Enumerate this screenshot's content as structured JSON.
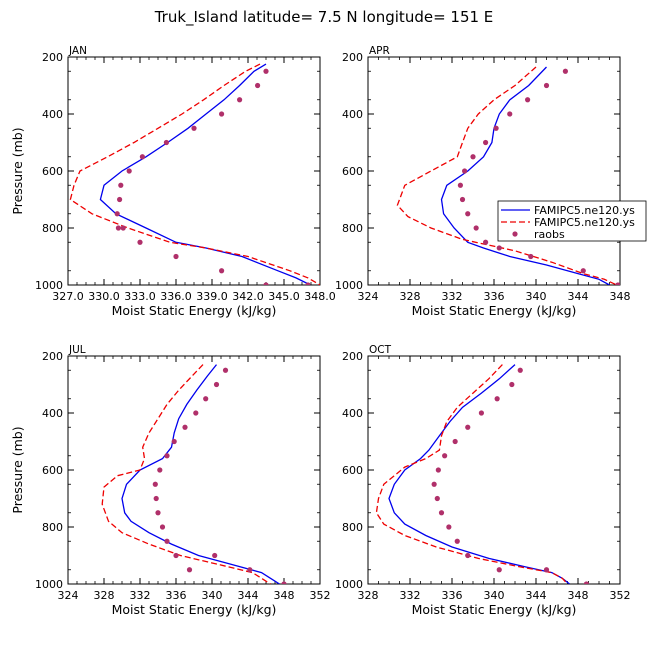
{
  "chart_data": {
    "title": "Truk_Island   latitude= 7.5 N longitude= 151 E",
    "type": "line",
    "colors": {
      "model1": "#0000ee",
      "model2": "#ee0000",
      "obs": "#b0306a"
    },
    "legend": [
      "FAMIPC5.ne120.ys",
      "FAMIPC5.ne120.ys",
      "raobs"
    ],
    "panels": [
      {
        "name": "JAN",
        "xlabel": "Moist Static Energy (kJ/kg)",
        "ylabel": "Pressure (mb)",
        "xlim": [
          327.0,
          348.0
        ],
        "xticks": [
          "327.0",
          "330.0",
          "333.0",
          "336.0",
          "339.0",
          "342.0",
          "345.0",
          "348.0"
        ],
        "ylim": [
          200,
          1000
        ],
        "yticks": [
          "200",
          "400",
          "600",
          "800",
          "1000"
        ],
        "series": [
          {
            "name": "FAMIPC5.ne120.ys",
            "style": "solid",
            "x": [
              343.5,
              342.5,
              341.3,
              340.0,
              338.5,
              337.0,
              335.3,
              333.5,
              331.5,
              330.0,
              329.7,
              331.0,
              333.5,
              336.0,
              338.5,
              341.5,
              344.5,
              346.0,
              347.2
            ],
            "y": [
              225,
              250,
              300,
              350,
              400,
              450,
              500,
              550,
              600,
              650,
              700,
              750,
              800,
              850,
              870,
              900,
              950,
              975,
              1000
            ]
          },
          {
            "name": "FAMIPC5.ne120.ys",
            "style": "dashed",
            "x": [
              343.0,
              341.8,
              340.0,
              338.3,
              336.5,
              334.5,
              332.5,
              330.3,
              328.0,
              327.5,
              327.2,
              329.0,
              332.0,
              335.5,
              338.5,
              342.0,
              345.5,
              347.0,
              348.0
            ],
            "y": [
              225,
              250,
              300,
              350,
              400,
              450,
              500,
              550,
              600,
              650,
              700,
              750,
              800,
              850,
              870,
              900,
              950,
              975,
              1000
            ]
          },
          {
            "name": "raobs",
            "style": "points",
            "x": [
              343.5,
              342.8,
              341.3,
              339.8,
              337.5,
              335.2,
              333.2,
              332.1,
              331.4,
              331.3,
              331.1,
              331.2,
              331.6,
              333.0,
              336.0,
              339.8,
              343.5,
              347.0
            ],
            "y": [
              250,
              300,
              350,
              400,
              450,
              500,
              550,
              600,
              650,
              700,
              750,
              800,
              800,
              850,
              900,
              950,
              1000,
              1000
            ]
          }
        ]
      },
      {
        "name": "APR",
        "xlabel": "Moist Static Energy (kJ/kg)",
        "ylabel": "",
        "xlim": [
          324,
          348
        ],
        "xticks": [
          "324",
          "328",
          "332",
          "336",
          "340",
          "344",
          "348"
        ],
        "ylim": [
          200,
          1000
        ],
        "yticks": [
          "200",
          "400",
          "600",
          "800",
          "1000"
        ],
        "series": [
          {
            "name": "FAMIPC5.ne120.ys",
            "style": "solid",
            "x": [
              341.0,
              339.3,
              337.5,
              336.5,
              336.0,
              335.8,
              335.0,
              333.5,
              331.5,
              331.0,
              331.2,
              332.2,
              333.5,
              335.0,
              337.5,
              341.0,
              344.0,
              346.0,
              347.0
            ],
            "y": [
              235,
              300,
              350,
              400,
              450,
              500,
              550,
              600,
              650,
              700,
              750,
              800,
              850,
              870,
              900,
              930,
              960,
              980,
              1000
            ]
          },
          {
            "name": "FAMIPC5.ne120.ys",
            "style": "dashed",
            "x": [
              340.0,
              338.0,
              336.0,
              334.5,
              333.5,
              333.0,
              332.5,
              330.0,
              327.5,
              326.8,
              327.8,
              330.0,
              333.0,
              335.5,
              338.0,
              341.5,
              344.5,
              346.5,
              347.7
            ],
            "y": [
              235,
              300,
              350,
              400,
              450,
              500,
              550,
              600,
              650,
              720,
              760,
              800,
              840,
              860,
              880,
              920,
              960,
              980,
              1000
            ]
          },
          {
            "name": "raobs",
            "style": "points",
            "x": [
              342.8,
              341.0,
              339.2,
              337.5,
              336.2,
              335.2,
              334.0,
              333.2,
              332.8,
              333.0,
              333.5,
              334.3,
              335.2,
              336.5,
              339.5,
              344.5,
              347.8
            ],
            "y": [
              250,
              300,
              350,
              400,
              450,
              500,
              550,
              600,
              650,
              700,
              750,
              800,
              850,
              870,
              900,
              950,
              1000
            ]
          }
        ]
      },
      {
        "name": "JUL",
        "xlabel": "Moist Static Energy (kJ/kg)",
        "ylabel": "Pressure (mb)",
        "xlim": [
          324,
          352
        ],
        "xticks": [
          "324",
          "328",
          "332",
          "336",
          "340",
          "344",
          "348",
          "352"
        ],
        "ylim": [
          200,
          1000
        ],
        "yticks": [
          "200",
          "400",
          "600",
          "800",
          "1000"
        ],
        "series": [
          {
            "name": "FAMIPC5.ne120.ys",
            "style": "solid",
            "x": [
              340.5,
              339.5,
              338.3,
              337.2,
              336.3,
              335.8,
              335.5,
              334.5,
              332.0,
              330.5,
              330.0,
              330.3,
              331.0,
              333.0,
              335.5,
              338.5,
              342.0,
              345.5,
              346.5,
              347.5
            ],
            "y": [
              230,
              270,
              320,
              370,
              420,
              470,
              520,
              560,
              600,
              650,
              700,
              750,
              780,
              820,
              860,
              900,
              930,
              960,
              980,
              1000
            ]
          },
          {
            "name": "FAMIPC5.ne120.ys",
            "style": "dashed",
            "x": [
              339.0,
              337.8,
              336.3,
              335.0,
              334.0,
              333.0,
              332.3,
              332.5,
              332.0,
              329.5,
              328.0,
              327.8,
              328.5,
              330.0,
              333.0,
              336.5,
              340.5,
              344.5,
              345.5,
              346.5
            ],
            "y": [
              230,
              270,
              320,
              370,
              420,
              470,
              520,
              560,
              600,
              620,
              660,
              720,
              780,
              820,
              860,
              900,
              930,
              960,
              980,
              1000
            ]
          },
          {
            "name": "raobs",
            "style": "points",
            "x": [
              341.5,
              340.5,
              339.3,
              338.2,
              337.0,
              335.8,
              335.0,
              334.2,
              333.7,
              333.8,
              334.0,
              334.5,
              335.0,
              336.0,
              337.5,
              340.3,
              344.2,
              348.0
            ],
            "y": [
              250,
              300,
              350,
              400,
              450,
              500,
              550,
              600,
              650,
              700,
              750,
              800,
              850,
              900,
              950,
              900,
              950,
              1000
            ]
          }
        ]
      },
      {
        "name": "OCT",
        "xlabel": "Moist Static Energy (kJ/kg)",
        "ylabel": "",
        "xlim": [
          328,
          352
        ],
        "xticks": [
          "328",
          "332",
          "336",
          "340",
          "344",
          "348",
          "352"
        ],
        "ylim": [
          200,
          1000
        ],
        "yticks": [
          "200",
          "400",
          "600",
          "800",
          "1000"
        ],
        "series": [
          {
            "name": "FAMIPC5.ne120.ys",
            "style": "solid",
            "x": [
              342.0,
              340.5,
              338.8,
              337.0,
              335.8,
              334.8,
              333.8,
              333.0,
              331.5,
              330.5,
              330.0,
              330.5,
              331.5,
              333.5,
              336.0,
              339.5,
              343.0,
              345.5,
              346.5,
              347.2
            ],
            "y": [
              230,
              280,
              330,
              380,
              430,
              480,
              530,
              560,
              600,
              650,
              700,
              750,
              790,
              830,
              870,
              910,
              940,
              960,
              980,
              1000
            ]
          },
          {
            "name": "FAMIPC5.ne120.ys",
            "style": "dashed",
            "x": [
              340.8,
              339.5,
              338.0,
              336.5,
              335.5,
              335.0,
              334.8,
              333.5,
              331.5,
              329.5,
              329.0,
              328.8,
              329.5,
              331.5,
              334.5,
              338.5,
              342.5,
              345.5,
              346.5,
              347.0
            ],
            "y": [
              230,
              280,
              330,
              380,
              430,
              480,
              530,
              560,
              590,
              650,
              700,
              750,
              790,
              830,
              870,
              910,
              940,
              960,
              980,
              1000
            ]
          },
          {
            "name": "raobs",
            "style": "points",
            "x": [
              342.5,
              341.7,
              340.3,
              338.8,
              337.5,
              336.3,
              335.3,
              334.7,
              334.3,
              334.6,
              335.0,
              335.7,
              336.5,
              337.5,
              340.5,
              345.0,
              348.8
            ],
            "y": [
              250,
              300,
              350,
              400,
              450,
              500,
              550,
              600,
              650,
              700,
              750,
              800,
              850,
              900,
              950,
              950,
              1000
            ]
          }
        ]
      }
    ]
  }
}
